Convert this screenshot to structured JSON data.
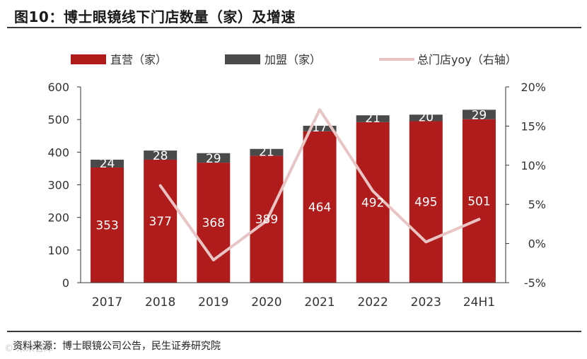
{
  "title": "图10：博士眼镜线下门店数量（家）及增速",
  "source": "资料来源：博士眼镜公司公告，民生证券研究院",
  "watermark": "© 未来智库",
  "colors": {
    "direct": "#b01c1c",
    "franchise": "#4a4a4a",
    "yoy": "#e8c4c4",
    "axis": "#333333"
  },
  "chart_data": {
    "type": "bar",
    "stacked": true,
    "categories": [
      "2017",
      "2018",
      "2019",
      "2020",
      "2021",
      "2022",
      "2023",
      "24H1"
    ],
    "series": [
      {
        "name": "直营（家）",
        "values": [
          353,
          377,
          368,
          389,
          464,
          492,
          495,
          501
        ]
      },
      {
        "name": "加盟（家）",
        "values": [
          24,
          28,
          29,
          21,
          17,
          21,
          20,
          29
        ]
      }
    ],
    "line_series": {
      "name": "总门店yoy（右轴）",
      "axis": "right",
      "values": [
        null,
        7.4,
        -2.1,
        2.9,
        17.1,
        6.7,
        0.2,
        3.1
      ]
    },
    "left_axis": {
      "ylim": [
        0,
        600
      ],
      "ticks": [
        "0",
        "100",
        "200",
        "300",
        "400",
        "500",
        "600"
      ]
    },
    "right_axis": {
      "ylim": [
        -5,
        20
      ],
      "ticks": [
        "-5%",
        "0%",
        "5%",
        "10%",
        "15%",
        "20%"
      ]
    },
    "legend": [
      "直营（家）",
      "加盟（家）",
      "总门店yoy（右轴）"
    ],
    "legend_position": "top"
  }
}
